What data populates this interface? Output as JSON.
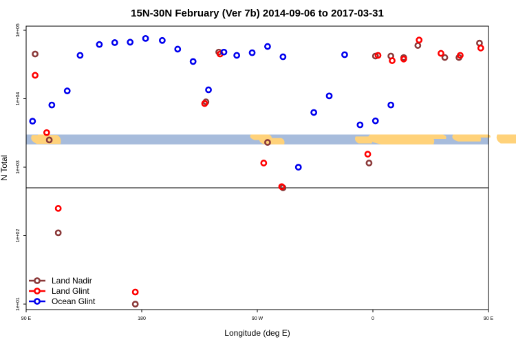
{
  "chart_data": {
    "type": "scatter",
    "title": "15N-30N February (Ver 7b)   2014-09-06 to 2017-03-31",
    "xlabel": "Longitude (deg E)",
    "ylabel": "N Total",
    "xlim": [
      90,
      450
    ],
    "ylim_log10": [
      1,
      5
    ],
    "yscale": "log",
    "x_ticks": [
      {
        "value": 90,
        "label": "90 E"
      },
      {
        "value": 180,
        "label": "180"
      },
      {
        "value": 270,
        "label": "90 W"
      },
      {
        "value": 360,
        "label": "0"
      },
      {
        "value": 450,
        "label": "90 E"
      }
    ],
    "y_ticks": [
      {
        "value": 10,
        "label": "1e+01"
      },
      {
        "value": 100,
        "label": "1e+02"
      },
      {
        "value": 1000,
        "label": "1e+03"
      },
      {
        "value": 10000,
        "label": "1e+04"
      },
      {
        "value": 100000,
        "label": "1e+05"
      }
    ],
    "reference_line_y": 500,
    "map_band": {
      "from_y": 3000,
      "to_y": 2150
    },
    "legend_position": "bottom-left",
    "series": [
      {
        "name": "Land Nadir",
        "color": "#8b3a3a",
        "x": [
          97,
          108,
          115,
          175,
          230,
          240,
          278,
          290,
          357,
          362,
          374,
          384,
          395,
          416,
          427,
          443,
          458,
          470,
          475
        ],
        "y": [
          45000,
          2500,
          110,
          10,
          9000,
          48000,
          2300,
          500,
          1150,
          42000,
          42000,
          40000,
          60000,
          40000,
          40000,
          65000,
          45000,
          2500,
          110
        ]
      },
      {
        "name": "Land Glint",
        "color": "#ff0000",
        "x": [
          97,
          106,
          115,
          175,
          229,
          241,
          275,
          289,
          356,
          364,
          375,
          384,
          396,
          413,
          428,
          444,
          458,
          469,
          476
        ],
        "y": [
          22000,
          3200,
          250,
          15,
          8500,
          45000,
          1150,
          520,
          1550,
          43000,
          36000,
          38000,
          72000,
          46000,
          43000,
          55000,
          22000,
          3200,
          250
        ]
      },
      {
        "name": "Ocean Glint",
        "color": "#0000ee",
        "x": [
          95,
          110,
          122,
          132,
          147,
          159,
          171,
          183,
          196,
          208,
          220,
          232,
          244,
          254,
          266,
          278,
          290,
          302,
          314,
          326,
          338,
          350,
          362,
          374
        ],
        "y": [
          4700,
          8100,
          13000,
          43000,
          62000,
          66000,
          67000,
          76000,
          71000,
          53000,
          35000,
          13500,
          48000,
          43000,
          47000,
          58000,
          41000,
          1000,
          6300,
          11000,
          44000,
          4150,
          4750,
          8100
        ]
      }
    ]
  }
}
